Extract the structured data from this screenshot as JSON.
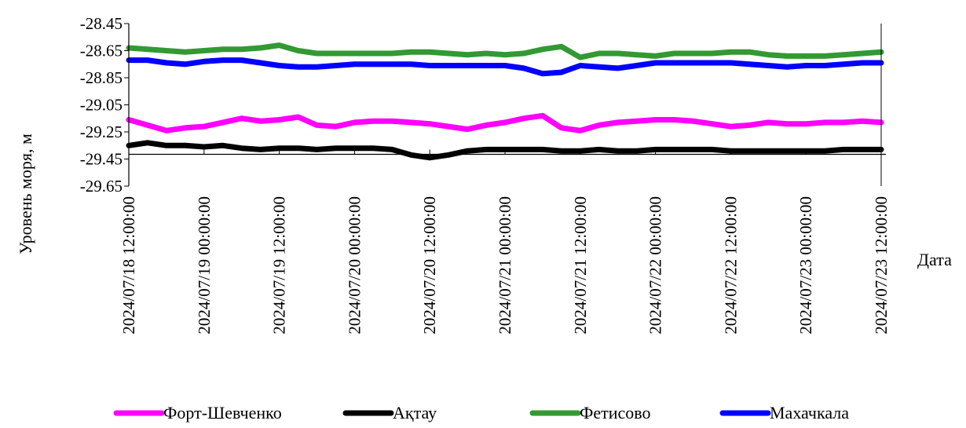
{
  "chart_data": {
    "type": "line",
    "title": "",
    "xlabel": "Дата",
    "ylabel": "Уровень моря, м",
    "ylim": [
      -29.65,
      -28.45
    ],
    "yticks": [
      -28.45,
      -28.65,
      -28.85,
      -29.05,
      -29.25,
      -29.45,
      -29.65
    ],
    "ytick_labels": [
      "-28.45",
      "-28.65",
      "-28.85",
      "-29.05",
      "-29.25",
      "-29.45",
      "-29.65"
    ],
    "xlim": [
      "2024-07-18T12:00:00",
      "2024-07-23T12:00:00"
    ],
    "xticks": [
      "2024-07-18T12:00:00",
      "2024-07-19T00:00:00",
      "2024-07-19T12:00:00",
      "2024-07-20T00:00:00",
      "2024-07-20T12:00:00",
      "2024-07-21T00:00:00",
      "2024-07-21T12:00:00",
      "2024-07-22T00:00:00",
      "2024-07-22T12:00:00",
      "2024-07-23T00:00:00",
      "2024-07-23T12:00:00"
    ],
    "xtick_labels": [
      "2024/07/18 12:00:00",
      "2024/07/19 00:00:00",
      "2024/07/19 12:00:00",
      "2024/07/20 00:00:00",
      "2024/07/20 12:00:00",
      "2024/07/21 00:00:00",
      "2024/07/21 12:00:00",
      "2024/07/22 00:00:00",
      "2024/07/22 12:00:00",
      "2024/07/23 00:00:00",
      "2024/07/23 12:00:00"
    ],
    "reference_line_y": -29.415,
    "grid": false,
    "legend_position": "bottom",
    "series": [
      {
        "name": "Форт-Шевченко",
        "color": "#ff00ff",
        "x": [
          "2024-07-18T12:00:00",
          "2024-07-18T15:00:00",
          "2024-07-18T18:00:00",
          "2024-07-18T21:00:00",
          "2024-07-19T00:00:00",
          "2024-07-19T03:00:00",
          "2024-07-19T06:00:00",
          "2024-07-19T09:00:00",
          "2024-07-19T12:00:00",
          "2024-07-19T15:00:00",
          "2024-07-19T18:00:00",
          "2024-07-19T21:00:00",
          "2024-07-20T00:00:00",
          "2024-07-20T03:00:00",
          "2024-07-20T06:00:00",
          "2024-07-20T09:00:00",
          "2024-07-20T12:00:00",
          "2024-07-20T15:00:00",
          "2024-07-20T18:00:00",
          "2024-07-20T21:00:00",
          "2024-07-21T00:00:00",
          "2024-07-21T03:00:00",
          "2024-07-21T06:00:00",
          "2024-07-21T09:00:00",
          "2024-07-21T12:00:00",
          "2024-07-21T15:00:00",
          "2024-07-21T18:00:00",
          "2024-07-21T21:00:00",
          "2024-07-22T00:00:00",
          "2024-07-22T03:00:00",
          "2024-07-22T06:00:00",
          "2024-07-22T09:00:00",
          "2024-07-22T12:00:00",
          "2024-07-22T15:00:00",
          "2024-07-22T18:00:00",
          "2024-07-22T21:00:00",
          "2024-07-23T00:00:00",
          "2024-07-23T03:00:00",
          "2024-07-23T06:00:00",
          "2024-07-23T09:00:00",
          "2024-07-23T12:00:00"
        ],
        "values": [
          -29.16,
          -29.2,
          -29.24,
          -29.22,
          -29.21,
          -29.18,
          -29.15,
          -29.17,
          -29.16,
          -29.14,
          -29.2,
          -29.21,
          -29.18,
          -29.17,
          -29.17,
          -29.18,
          -29.19,
          -29.21,
          -29.23,
          -29.2,
          -29.18,
          -29.15,
          -29.13,
          -29.22,
          -29.24,
          -29.2,
          -29.18,
          -29.17,
          -29.16,
          -29.16,
          -29.17,
          -29.19,
          -29.21,
          -29.2,
          -29.18,
          -29.19,
          -29.19,
          -29.18,
          -29.18,
          -29.17,
          -29.18
        ]
      },
      {
        "name": "Ақтау",
        "color": "#000000",
        "x": [
          "2024-07-18T12:00:00",
          "2024-07-18T15:00:00",
          "2024-07-18T18:00:00",
          "2024-07-18T21:00:00",
          "2024-07-19T00:00:00",
          "2024-07-19T03:00:00",
          "2024-07-19T06:00:00",
          "2024-07-19T09:00:00",
          "2024-07-19T12:00:00",
          "2024-07-19T15:00:00",
          "2024-07-19T18:00:00",
          "2024-07-19T21:00:00",
          "2024-07-20T00:00:00",
          "2024-07-20T03:00:00",
          "2024-07-20T06:00:00",
          "2024-07-20T09:00:00",
          "2024-07-20T12:00:00",
          "2024-07-20T15:00:00",
          "2024-07-20T18:00:00",
          "2024-07-20T21:00:00",
          "2024-07-21T00:00:00",
          "2024-07-21T03:00:00",
          "2024-07-21T06:00:00",
          "2024-07-21T09:00:00",
          "2024-07-21T12:00:00",
          "2024-07-21T15:00:00",
          "2024-07-21T18:00:00",
          "2024-07-21T21:00:00",
          "2024-07-22T00:00:00",
          "2024-07-22T03:00:00",
          "2024-07-22T06:00:00",
          "2024-07-22T09:00:00",
          "2024-07-22T12:00:00",
          "2024-07-22T15:00:00",
          "2024-07-22T18:00:00",
          "2024-07-22T21:00:00",
          "2024-07-23T00:00:00",
          "2024-07-23T03:00:00",
          "2024-07-23T06:00:00",
          "2024-07-23T09:00:00",
          "2024-07-23T12:00:00"
        ],
        "values": [
          -29.35,
          -29.33,
          -29.35,
          -29.35,
          -29.36,
          -29.35,
          -29.37,
          -29.38,
          -29.37,
          -29.37,
          -29.38,
          -29.37,
          -29.37,
          -29.37,
          -29.38,
          -29.42,
          -29.44,
          -29.42,
          -29.39,
          -29.38,
          -29.38,
          -29.38,
          -29.38,
          -29.39,
          -29.39,
          -29.38,
          -29.39,
          -29.39,
          -29.38,
          -29.38,
          -29.38,
          -29.38,
          -29.39,
          -29.39,
          -29.39,
          -29.39,
          -29.39,
          -29.39,
          -29.38,
          -29.38,
          -29.38
        ]
      },
      {
        "name": "Фетисово",
        "color": "#339933",
        "x": [
          "2024-07-18T12:00:00",
          "2024-07-18T15:00:00",
          "2024-07-18T18:00:00",
          "2024-07-18T21:00:00",
          "2024-07-19T00:00:00",
          "2024-07-19T03:00:00",
          "2024-07-19T06:00:00",
          "2024-07-19T09:00:00",
          "2024-07-19T12:00:00",
          "2024-07-19T15:00:00",
          "2024-07-19T18:00:00",
          "2024-07-19T21:00:00",
          "2024-07-20T00:00:00",
          "2024-07-20T03:00:00",
          "2024-07-20T06:00:00",
          "2024-07-20T09:00:00",
          "2024-07-20T12:00:00",
          "2024-07-20T15:00:00",
          "2024-07-20T18:00:00",
          "2024-07-20T21:00:00",
          "2024-07-21T00:00:00",
          "2024-07-21T03:00:00",
          "2024-07-21T06:00:00",
          "2024-07-21T09:00:00",
          "2024-07-21T12:00:00",
          "2024-07-21T15:00:00",
          "2024-07-21T18:00:00",
          "2024-07-21T21:00:00",
          "2024-07-22T00:00:00",
          "2024-07-22T03:00:00",
          "2024-07-22T06:00:00",
          "2024-07-22T09:00:00",
          "2024-07-22T12:00:00",
          "2024-07-22T15:00:00",
          "2024-07-22T18:00:00",
          "2024-07-22T21:00:00",
          "2024-07-23T00:00:00",
          "2024-07-23T03:00:00",
          "2024-07-23T06:00:00",
          "2024-07-23T09:00:00",
          "2024-07-23T12:00:00"
        ],
        "values": [
          -28.63,
          -28.64,
          -28.65,
          -28.66,
          -28.65,
          -28.64,
          -28.64,
          -28.63,
          -28.61,
          -28.65,
          -28.67,
          -28.67,
          -28.67,
          -28.67,
          -28.67,
          -28.66,
          -28.66,
          -28.67,
          -28.68,
          -28.67,
          -28.68,
          -28.67,
          -28.64,
          -28.62,
          -28.7,
          -28.67,
          -28.67,
          -28.68,
          -28.69,
          -28.67,
          -28.67,
          -28.67,
          -28.66,
          -28.66,
          -28.68,
          -28.69,
          -28.69,
          -28.69,
          -28.68,
          -28.67,
          -28.66
        ]
      },
      {
        "name": "Махачкала",
        "color": "#0000ff",
        "x": [
          "2024-07-18T12:00:00",
          "2024-07-18T15:00:00",
          "2024-07-18T18:00:00",
          "2024-07-18T21:00:00",
          "2024-07-19T00:00:00",
          "2024-07-19T03:00:00",
          "2024-07-19T06:00:00",
          "2024-07-19T09:00:00",
          "2024-07-19T12:00:00",
          "2024-07-19T15:00:00",
          "2024-07-19T18:00:00",
          "2024-07-19T21:00:00",
          "2024-07-20T00:00:00",
          "2024-07-20T03:00:00",
          "2024-07-20T06:00:00",
          "2024-07-20T09:00:00",
          "2024-07-20T12:00:00",
          "2024-07-20T15:00:00",
          "2024-07-20T18:00:00",
          "2024-07-20T21:00:00",
          "2024-07-21T00:00:00",
          "2024-07-21T03:00:00",
          "2024-07-21T06:00:00",
          "2024-07-21T09:00:00",
          "2024-07-21T12:00:00",
          "2024-07-21T15:00:00",
          "2024-07-21T18:00:00",
          "2024-07-21T21:00:00",
          "2024-07-22T00:00:00",
          "2024-07-22T03:00:00",
          "2024-07-22T06:00:00",
          "2024-07-22T09:00:00",
          "2024-07-22T12:00:00",
          "2024-07-22T15:00:00",
          "2024-07-22T18:00:00",
          "2024-07-22T21:00:00",
          "2024-07-23T00:00:00",
          "2024-07-23T03:00:00",
          "2024-07-23T06:00:00",
          "2024-07-23T09:00:00",
          "2024-07-23T12:00:00"
        ],
        "values": [
          -28.72,
          -28.72,
          -28.74,
          -28.75,
          -28.73,
          -28.72,
          -28.72,
          -28.74,
          -28.76,
          -28.77,
          -28.77,
          -28.76,
          -28.75,
          -28.75,
          -28.75,
          -28.75,
          -28.76,
          -28.76,
          -28.76,
          -28.76,
          -28.76,
          -28.78,
          -28.82,
          -28.81,
          -28.76,
          -28.77,
          -28.78,
          -28.76,
          -28.74,
          -28.74,
          -28.74,
          -28.74,
          -28.74,
          -28.75,
          -28.76,
          -28.77,
          -28.76,
          -28.76,
          -28.75,
          -28.74,
          -28.74
        ]
      }
    ]
  }
}
